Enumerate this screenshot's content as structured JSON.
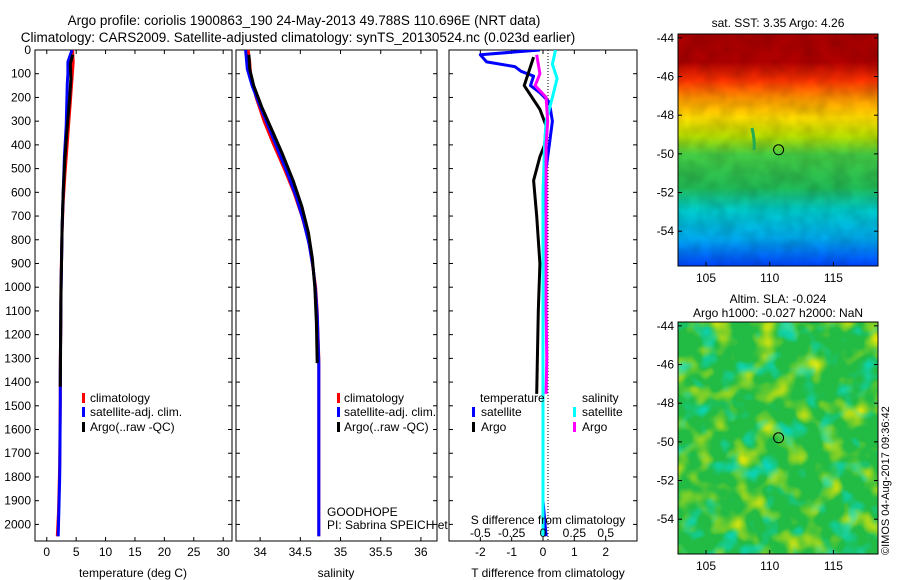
{
  "header": {
    "title_line1": "Argo profile: coriolis 1900863_190 24-May-2013 49.788S 110.696E (NRT data)",
    "title_line2": "Climatology: CARS2009. Satellite-adjusted climatology: synTS_20130524.nc (0.023d earlier)"
  },
  "credit": "©IMOS 04-Aug-2017 09:36:42",
  "colors": {
    "climatology": "#ff0000",
    "satellite_adj": "#0000ff",
    "argo": "#000000",
    "sat_salinity": "#00ffff",
    "argo_salinity": "#ff00ff"
  },
  "chart_data": [
    {
      "type": "line",
      "id": "temperature",
      "xlabel": "temperature (deg C)",
      "ylabel": "",
      "xlim": [
        -2,
        31.5
      ],
      "ylim": [
        2070,
        0
      ],
      "xticks": [
        0,
        5,
        10,
        15,
        20,
        25,
        30
      ],
      "yticks": [
        0,
        100,
        200,
        300,
        400,
        500,
        600,
        700,
        800,
        900,
        1000,
        1100,
        1200,
        1300,
        1400,
        1500,
        1600,
        1700,
        1800,
        1900,
        2000
      ],
      "legend": [
        "climatology",
        "satellite-adj. clim.",
        "Argo(..raw -QC)"
      ],
      "series": [
        {
          "name": "climatology",
          "x": [
            4.4,
            4.5,
            4.3,
            4.0,
            3.7,
            3.4,
            3.1,
            2.8,
            2.6,
            2.5,
            2.4,
            2.4,
            2.3,
            2.3,
            2.25,
            2.2,
            2.1,
            2.0,
            1.9,
            1.8
          ],
          "y": [
            0,
            50,
            120,
            220,
            320,
            420,
            520,
            640,
            760,
            880,
            1000,
            1150,
            1300,
            1450,
            1600,
            1750,
            1850,
            1950,
            2000,
            2050
          ]
        },
        {
          "name": "satellite-adj. clim.",
          "x": [
            4.3,
            3.6,
            3.6,
            3.5,
            3.4,
            3.3,
            3.0,
            2.8,
            2.6,
            2.5,
            2.4,
            2.35,
            2.3,
            2.3,
            2.25,
            2.2,
            2.1,
            2.0,
            1.95
          ],
          "y": [
            0,
            50,
            100,
            140,
            220,
            320,
            450,
            600,
            750,
            900,
            1050,
            1200,
            1350,
            1500,
            1650,
            1800,
            1900,
            2000,
            2050
          ]
        },
        {
          "name": "Argo(..raw -QC)",
          "x": [
            4.4,
            4.0,
            4.1,
            3.9,
            3.5,
            3.1,
            2.8,
            2.6,
            2.5,
            2.4,
            2.35,
            2.3
          ],
          "y": [
            20,
            60,
            120,
            200,
            320,
            450,
            600,
            750,
            900,
            1050,
            1250,
            1420
          ]
        }
      ]
    },
    {
      "type": "line",
      "id": "salinity",
      "xlabel": "salinity",
      "ylabel": "",
      "xlim": [
        33.7,
        36.2
      ],
      "ylim": [
        2070,
        0
      ],
      "xticks": [
        34,
        34.5,
        35,
        35.5,
        36
      ],
      "legend": [
        "climatology",
        "satellite-adj. clim.",
        "Argo(..raw -QC)"
      ],
      "annotation_line1": "GOODHOPE",
      "annotation_line2": "PI: Sabrina SPEICH et Michel ARHAN",
      "series": [
        {
          "name": "climatology",
          "x": [
            33.85,
            33.87,
            33.88,
            33.95,
            34.05,
            34.17,
            34.3,
            34.42,
            34.52,
            34.6,
            34.65,
            34.69,
            34.71,
            34.72,
            34.73,
            34.73,
            34.73,
            34.73,
            34.73
          ],
          "y": [
            0,
            50,
            100,
            200,
            300,
            400,
            500,
            600,
            700,
            800,
            900,
            1000,
            1100,
            1200,
            1300,
            1500,
            1700,
            1900,
            2050
          ]
        },
        {
          "name": "satellite-adj. clim.",
          "x": [
            33.82,
            33.84,
            33.9,
            33.98,
            34.1,
            34.22,
            34.34,
            34.45,
            34.54,
            34.61,
            34.66,
            34.69,
            34.71,
            34.72,
            34.73,
            34.73,
            34.73,
            34.73,
            34.73
          ],
          "y": [
            0,
            80,
            150,
            220,
            320,
            420,
            520,
            620,
            720,
            820,
            920,
            1020,
            1120,
            1220,
            1320,
            1500,
            1700,
            1900,
            2050
          ]
        },
        {
          "name": "Argo(..raw -QC)",
          "x": [
            33.86,
            33.87,
            33.92,
            34.02,
            34.15,
            34.28,
            34.41,
            34.52,
            34.6,
            34.65,
            34.68,
            34.7,
            34.71
          ],
          "y": [
            20,
            80,
            150,
            240,
            340,
            440,
            550,
            660,
            770,
            880,
            1000,
            1150,
            1320
          ]
        }
      ]
    },
    {
      "type": "line",
      "id": "differences",
      "xlabel": "T difference from climatology",
      "top_xlabel": "S difference from climatology",
      "xlim": [
        -3,
        3
      ],
      "ylim": [
        2070,
        0
      ],
      "xticks": [
        -2,
        -1,
        0,
        1,
        2
      ],
      "top_xtick_labels": [
        "-0.5",
        "-0.25",
        "0",
        "0.25",
        "0.5"
      ],
      "legend_left": {
        "heading": "temperature",
        "entries": [
          "satellite",
          "Argo"
        ]
      },
      "legend_right": {
        "heading": "salinity",
        "entries": [
          "satellite",
          "Argo"
        ]
      },
      "series": [
        {
          "name": "temperature satellite",
          "x": [
            -0.1,
            -2.0,
            -1.8,
            -0.9,
            -0.7,
            -0.3,
            -0.4,
            -0.1,
            0.2,
            0.3,
            0.2,
            0.1,
            0.05,
            0.0,
            0.0,
            0.0,
            0.0,
            0.0,
            0.0,
            0.0,
            0.1
          ],
          "y": [
            0,
            20,
            50,
            70,
            90,
            110,
            150,
            180,
            220,
            300,
            400,
            500,
            600,
            700,
            900,
            1100,
            1300,
            1500,
            1700,
            1900,
            2050
          ]
        },
        {
          "name": "temperature Argo",
          "x": [
            -0.3,
            -0.6,
            -0.1,
            0.1,
            0.05,
            -0.1,
            -0.3,
            -0.2,
            -0.1,
            -0.15,
            -0.2
          ],
          "y": [
            30,
            150,
            250,
            320,
            400,
            450,
            550,
            700,
            900,
            1100,
            1450
          ]
        },
        {
          "name": "salinity satellite",
          "x": [
            0.4,
            0.3,
            0.45,
            0.3,
            0.1,
            0.05,
            0.0,
            0.0,
            0.0,
            0.0,
            0.0,
            0.0,
            0.0
          ],
          "y": [
            0,
            60,
            120,
            200,
            300,
            400,
            600,
            800,
            1000,
            1300,
            1600,
            1900,
            2050
          ]
        },
        {
          "name": "salinity Argo",
          "x": [
            -0.2,
            -0.1,
            -0.25,
            0.1,
            0.15,
            0.1,
            0.1,
            0.1,
            0.1,
            0.1,
            0.12,
            0.1
          ],
          "y": [
            20,
            100,
            150,
            200,
            300,
            400,
            550,
            700,
            900,
            1100,
            1300,
            1450
          ]
        }
      ]
    },
    {
      "type": "heatmap",
      "id": "sst-map",
      "title": "sat. SST: 3.35 Argo: 4.26",
      "xticks": [
        105,
        110,
        115
      ],
      "yticks": [
        -44,
        -46,
        -48,
        -50,
        -52,
        -54
      ],
      "xlim": [
        102.8,
        118.5
      ],
      "ylim": [
        -55.8,
        -43.8
      ],
      "marker": {
        "lon": 110.696,
        "lat": -49.788
      }
    },
    {
      "type": "heatmap",
      "id": "sla-map",
      "title_line1": "Altim. SLA: -0.024",
      "title_line2": "Argo h1000: -0.027 h2000: NaN",
      "xticks": [
        105,
        110,
        115
      ],
      "yticks": [
        -44,
        -46,
        -48,
        -50,
        -52,
        -54
      ],
      "xlim": [
        102.8,
        118.5
      ],
      "ylim": [
        -55.8,
        -43.8
      ],
      "marker": {
        "lon": 110.696,
        "lat": -49.788
      }
    }
  ]
}
